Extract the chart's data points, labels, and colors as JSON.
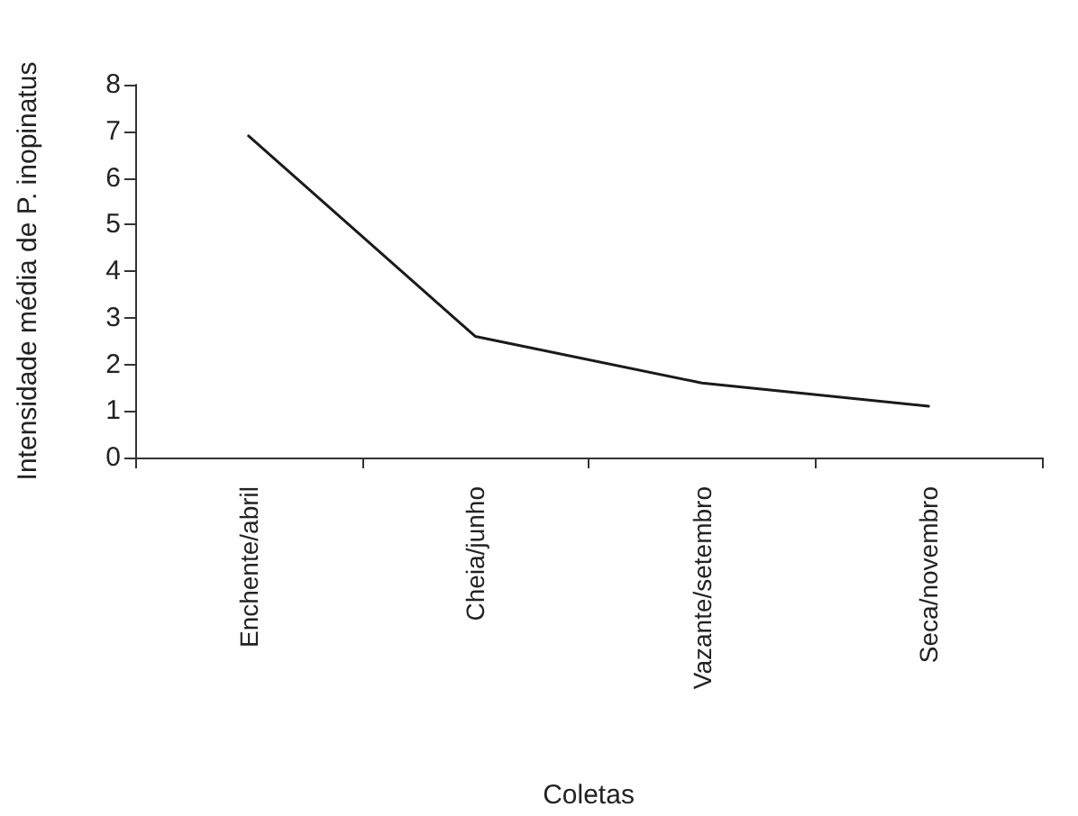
{
  "chart_data": {
    "type": "line",
    "xlabel": "Coletas",
    "ylabel": "Intensidade média de P. inopinatus",
    "categories": [
      "Enchente/abril",
      "Cheia/junho",
      "Vazante/setembro",
      "Seca/novembro"
    ],
    "series": [
      {
        "color": "#1a1a1a",
        "values": [
          6.9,
          2.6,
          1.6,
          1.1
        ]
      }
    ],
    "ylim": [
      0,
      8
    ],
    "yticks": [
      0,
      1,
      2,
      3,
      4,
      5,
      6,
      7,
      8
    ],
    "grid": false,
    "marker": "none",
    "line_style": "solid"
  }
}
